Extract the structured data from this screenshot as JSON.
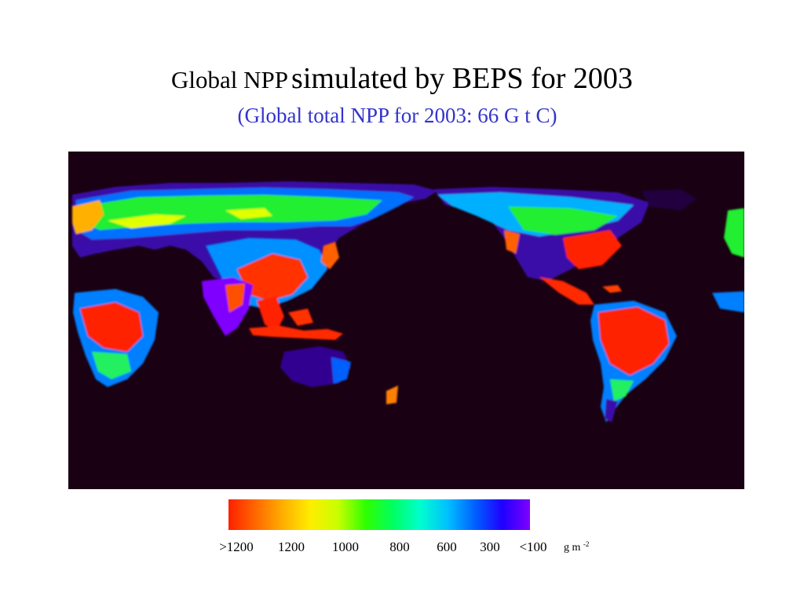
{
  "title": {
    "prefix": "Global NPP",
    "main": "simulated by BEPS for 2003"
  },
  "subtitle": "(Global total NPP for 2003:  66 G t C)",
  "map": {
    "background": "#1a0013",
    "ocean_color": "#1a0013"
  },
  "legend": {
    "colors": [
      "#ff2000",
      "#ff6a00",
      "#ffb000",
      "#ffee00",
      "#c8ff00",
      "#30ff00",
      "#00ff60",
      "#00ffd0",
      "#00c0ff",
      "#0060ff",
      "#2000ff",
      "#8000ff"
    ],
    "ticks": [
      ">1200",
      "1200",
      "1000",
      "800",
      "600",
      "300",
      "<100"
    ],
    "unit_base": "g m",
    "unit_exp": "-2"
  }
}
